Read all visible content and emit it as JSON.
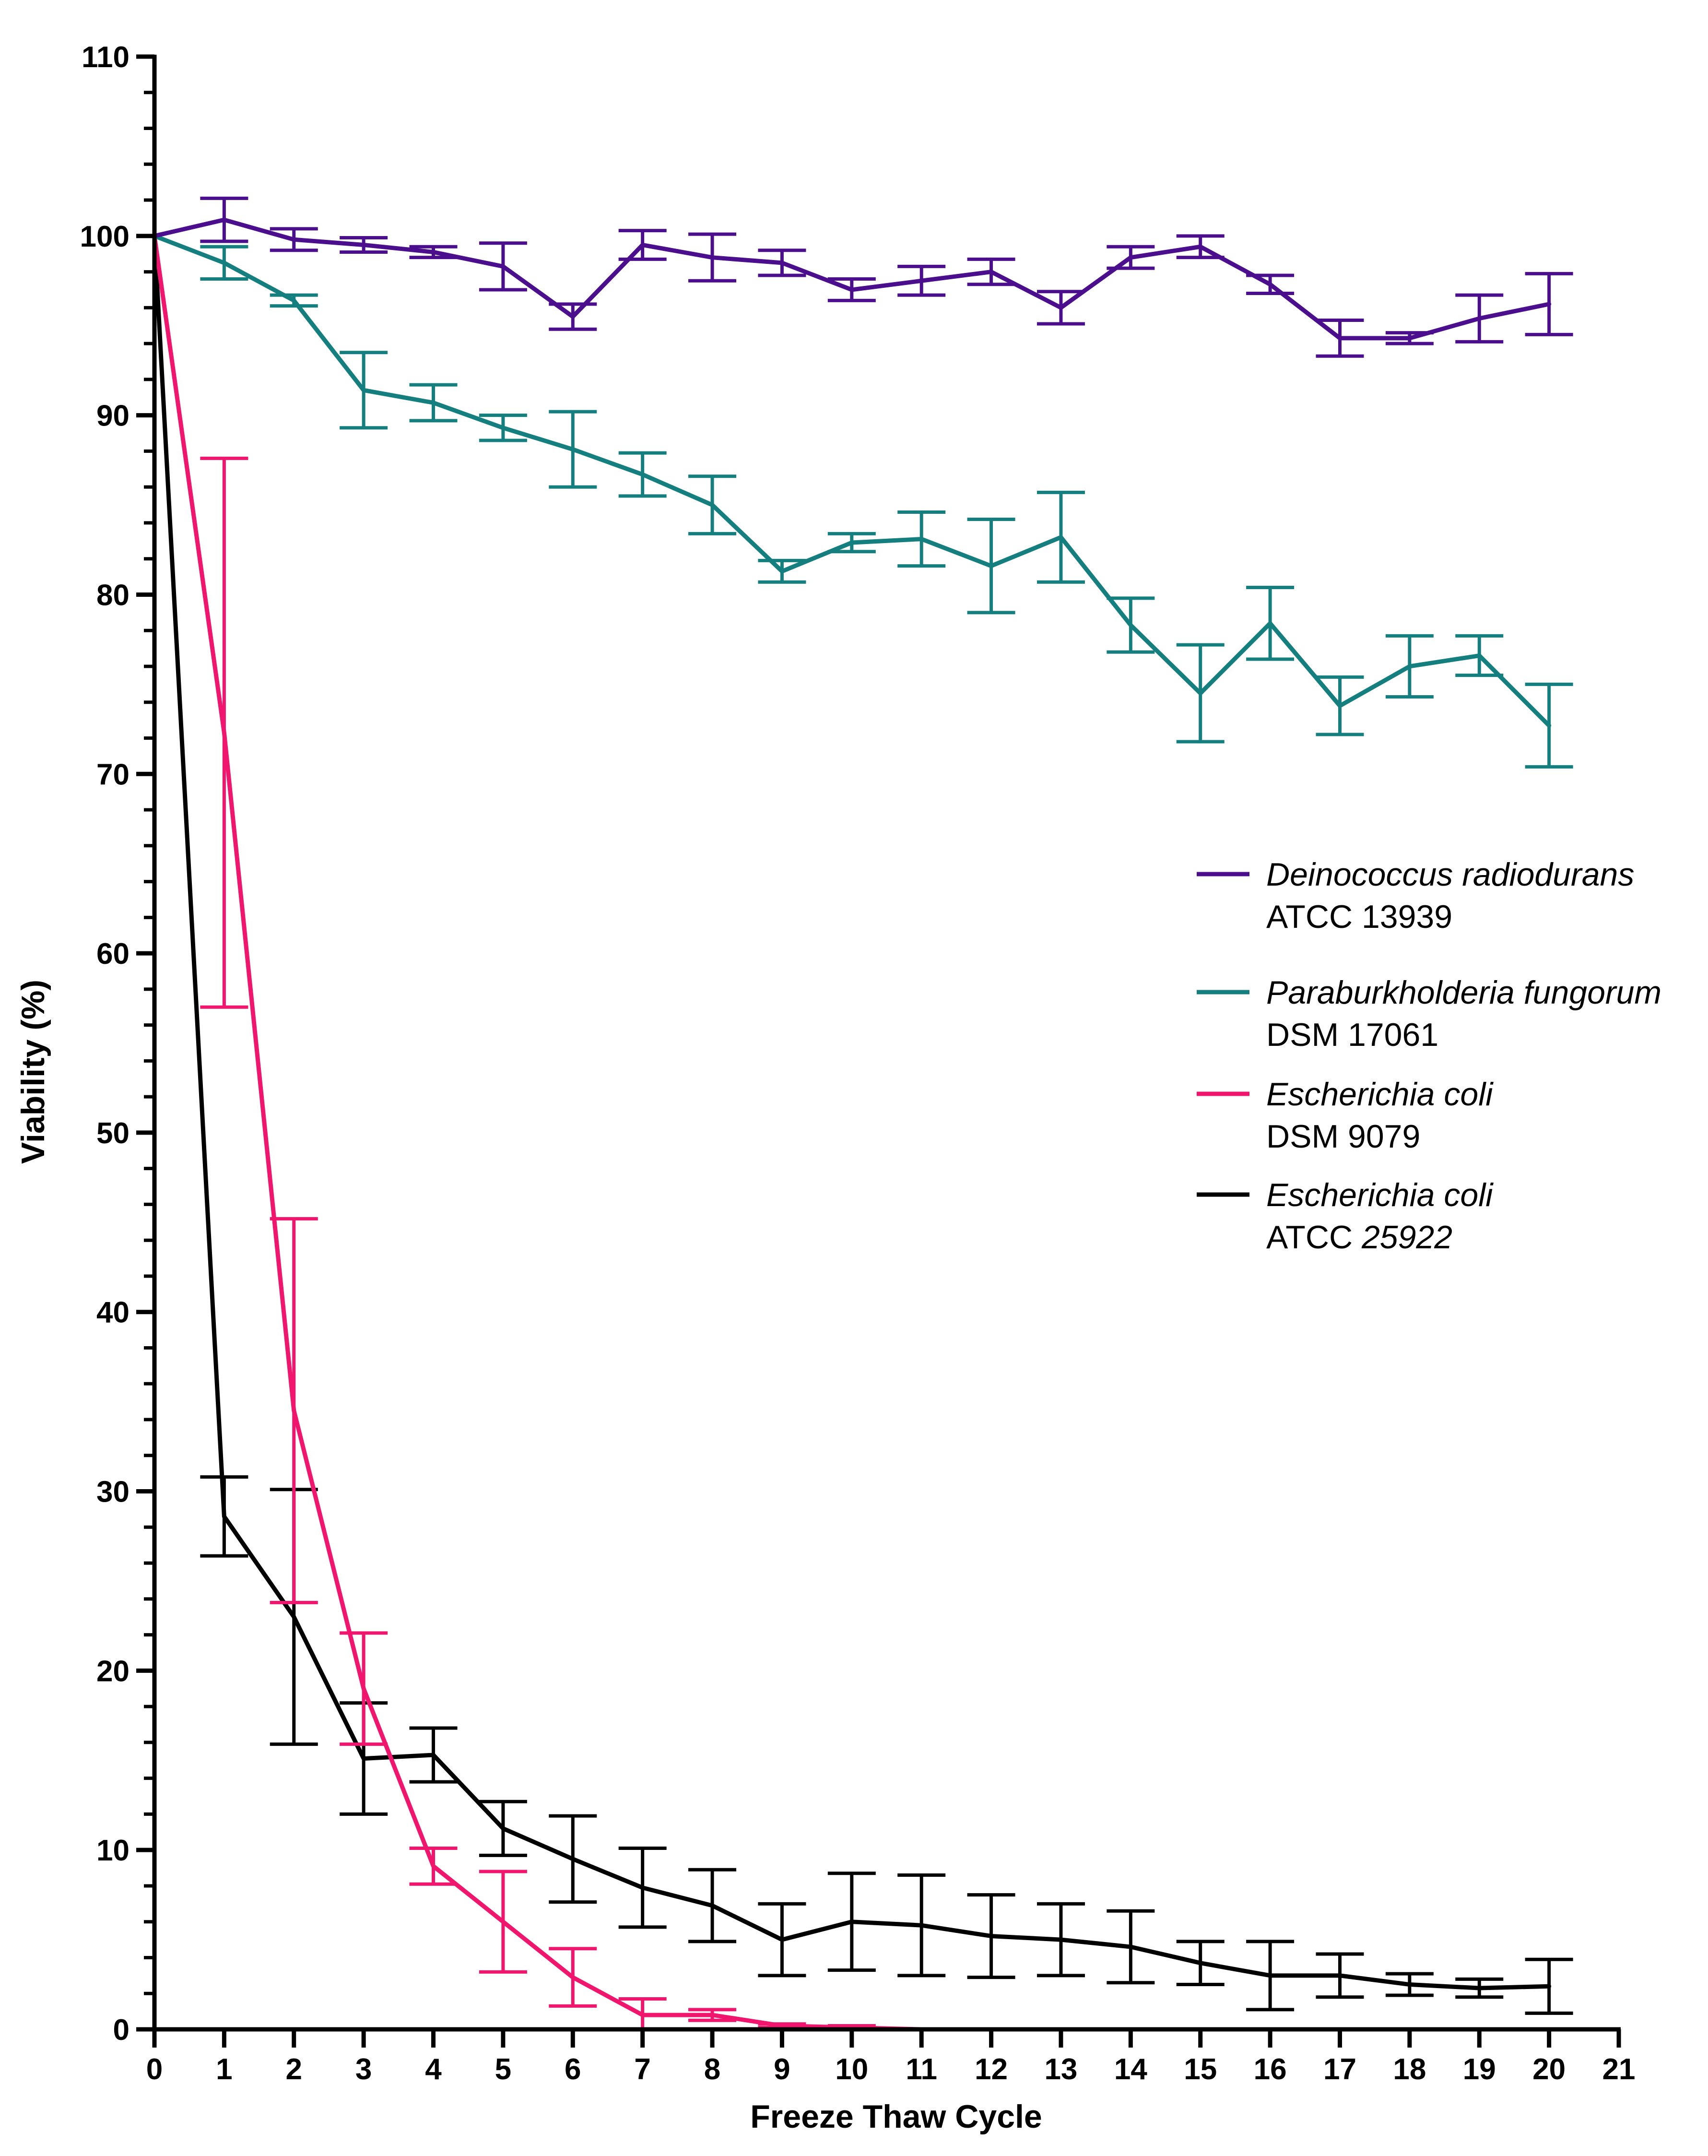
{
  "chart_data": {
    "type": "line",
    "xlabel": "Freeze Thaw Cycle",
    "ylabel": "Viability (%)",
    "xlim": [
      0,
      21
    ],
    "ylim": [
      0,
      110
    ],
    "x_ticks": [
      "0",
      "1",
      "2",
      "3",
      "4",
      "5",
      "6",
      "7",
      "8",
      "9",
      "10",
      "11",
      "12",
      "13",
      "14",
      "15",
      "16",
      "17",
      "18",
      "19",
      "20",
      "21"
    ],
    "y_ticks": [
      "0",
      "10",
      "20",
      "30",
      "40",
      "50",
      "60",
      "70",
      "80",
      "90",
      "100",
      "110"
    ],
    "grid": false,
    "legend_position": "right",
    "x": [
      0,
      1,
      2,
      3,
      4,
      5,
      6,
      7,
      8,
      9,
      10,
      11,
      12,
      13,
      14,
      15,
      16,
      17,
      18,
      19,
      20
    ],
    "series": [
      {
        "name": "Deinococcus radiodurans",
        "name_suffix": "ATCC 13939",
        "color": "#4b0e8c",
        "values": [
          100,
          100.9,
          99.8,
          99.5,
          99.1,
          98.3,
          95.5,
          99.5,
          98.8,
          98.5,
          97.0,
          97.5,
          98.0,
          96.0,
          98.8,
          99.4,
          97.3,
          94.3,
          94.3,
          95.4,
          96.2
        ],
        "errors": [
          0,
          1.2,
          0.6,
          0.4,
          0.3,
          1.3,
          0.7,
          0.8,
          1.3,
          0.7,
          0.6,
          0.8,
          0.7,
          0.9,
          0.6,
          0.6,
          0.5,
          1.0,
          0.3,
          1.3,
          1.7
        ]
      },
      {
        "name": "Paraburkholderia fungorum",
        "name_suffix": "DSM 17061",
        "color": "#157f7f",
        "values": [
          100,
          98.5,
          96.4,
          91.4,
          90.7,
          89.3,
          88.1,
          86.7,
          85.0,
          81.3,
          82.9,
          83.1,
          81.6,
          83.2,
          78.3,
          74.5,
          78.4,
          73.8,
          76.0,
          76.6,
          72.7
        ],
        "errors": [
          0,
          0.9,
          0.3,
          2.1,
          1.0,
          0.7,
          2.1,
          1.2,
          1.6,
          0.6,
          0.5,
          1.5,
          2.6,
          2.5,
          1.5,
          2.7,
          2.0,
          1.6,
          1.7,
          1.1,
          2.3
        ]
      },
      {
        "name": "Escherichia coli",
        "name_suffix": "DSM 9079",
        "color": "#f0166e",
        "values": [
          100,
          72.3,
          34.5,
          19.0,
          9.1,
          6.0,
          2.9,
          0.8,
          0.8,
          0.2,
          0.1,
          0.0,
          0.0,
          0.0,
          0.0,
          0.0,
          0.0,
          0.0,
          0.0,
          0.0,
          0.0
        ],
        "errors": [
          0,
          15.3,
          10.7,
          3.1,
          1.0,
          2.8,
          1.6,
          0.9,
          0.3,
          0.1,
          0.1,
          0,
          0,
          0,
          0,
          0,
          0,
          0,
          0,
          0,
          0
        ]
      },
      {
        "name": "Escherichia coli",
        "name_suffix": "ATCC ",
        "name_suffix_italic": "25922",
        "color": "#000000",
        "values": [
          100,
          28.6,
          23.0,
          15.1,
          15.3,
          11.2,
          9.5,
          7.9,
          6.9,
          5.0,
          6.0,
          5.8,
          5.2,
          5.0,
          4.6,
          3.7,
          3.0,
          3.0,
          2.5,
          2.3,
          2.4
        ],
        "errors": [
          0,
          2.2,
          7.1,
          3.1,
          1.5,
          1.5,
          2.4,
          2.2,
          2.0,
          2.0,
          2.7,
          2.8,
          2.3,
          2.0,
          2.0,
          1.2,
          1.9,
          1.2,
          0.6,
          0.5,
          1.5
        ]
      }
    ]
  }
}
